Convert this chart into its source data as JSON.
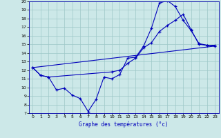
{
  "title": "Graphe des températures (°c)",
  "bg_color": "#cce8e8",
  "line_color": "#0000bb",
  "xlim": [
    -0.5,
    23.5
  ],
  "ylim": [
    7,
    20
  ],
  "xticks": [
    0,
    1,
    2,
    3,
    4,
    5,
    6,
    7,
    8,
    9,
    10,
    11,
    12,
    13,
    14,
    15,
    16,
    17,
    18,
    19,
    20,
    21,
    22,
    23
  ],
  "yticks": [
    7,
    8,
    9,
    10,
    11,
    12,
    13,
    14,
    15,
    16,
    17,
    18,
    19,
    20
  ],
  "line1_x": [
    0,
    1,
    2,
    3,
    4,
    5,
    6,
    7,
    8,
    9,
    10,
    11,
    12,
    13,
    14,
    15,
    16,
    17,
    18,
    19,
    20,
    21,
    22,
    23
  ],
  "line1_y": [
    12.3,
    11.4,
    11.2,
    9.7,
    9.9,
    9.1,
    8.7,
    7.2,
    8.6,
    11.2,
    11.0,
    11.5,
    13.4,
    13.5,
    14.8,
    16.9,
    19.8,
    20.1,
    19.4,
    17.8,
    16.6,
    15.1,
    14.9,
    14.8
  ],
  "line2_x": [
    0,
    1,
    2,
    10,
    11,
    12,
    13,
    14,
    15,
    16,
    17,
    18,
    19,
    20,
    21,
    22,
    23
  ],
  "line2_y": [
    12.3,
    11.4,
    11.2,
    11.8,
    12.0,
    12.8,
    13.4,
    14.6,
    15.2,
    16.5,
    17.2,
    17.8,
    18.5,
    16.7,
    15.0,
    14.9,
    14.9
  ],
  "line3_x": [
    0,
    23
  ],
  "line3_y": [
    12.3,
    14.8
  ]
}
